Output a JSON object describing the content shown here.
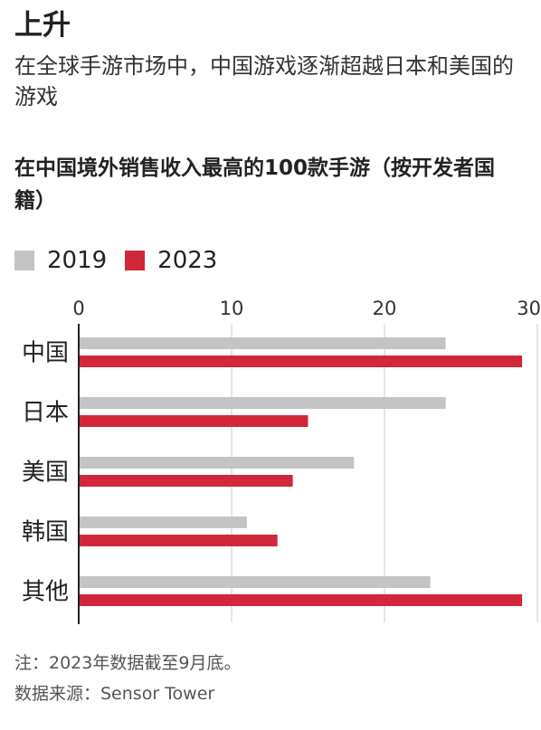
{
  "header": {
    "title": "上升",
    "subtitle": "在全球手游市场中，中国游戏逐渐超越日本和美国的游戏"
  },
  "chart_data": {
    "type": "bar",
    "orientation": "horizontal",
    "title": "在中国境外销售收入最高的100款手游（按开发者国籍）",
    "categories": [
      "中国",
      "日本",
      "美国",
      "韩国",
      "其他"
    ],
    "series": [
      {
        "name": "2019",
        "color": "#c4c4c4",
        "values": [
          24,
          24,
          18,
          11,
          23
        ]
      },
      {
        "name": "2023",
        "color": "#d0273b",
        "values": [
          29,
          15,
          14,
          13,
          29
        ]
      }
    ],
    "xlim": [
      0,
      30
    ],
    "xticks": [
      0,
      10,
      20,
      30
    ],
    "grid": true,
    "legend_position": "top-left"
  },
  "footer": {
    "note": "注：2023年数据截至9月底。",
    "source": "数据来源：Sensor Tower"
  }
}
